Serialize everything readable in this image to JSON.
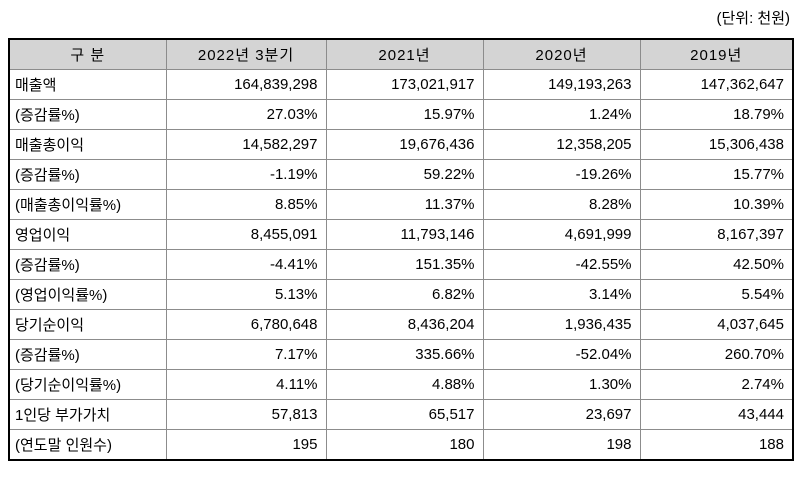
{
  "unit_label": "(단위: 천원)",
  "table": {
    "headers": [
      "구 분",
      "2022년 3분기",
      "2021년",
      "2020년",
      "2019년"
    ],
    "rows": [
      {
        "label": "매출액",
        "values": [
          "164,839,298",
          "173,021,917",
          "149,193,263",
          "147,362,647"
        ]
      },
      {
        "label": "(증감률%)",
        "values": [
          "27.03%",
          "15.97%",
          "1.24%",
          "18.79%"
        ]
      },
      {
        "label": "매출총이익",
        "values": [
          "14,582,297",
          "19,676,436",
          "12,358,205",
          "15,306,438"
        ]
      },
      {
        "label": "(증감률%)",
        "values": [
          "-1.19%",
          "59.22%",
          "-19.26%",
          "15.77%"
        ]
      },
      {
        "label": "(매출총이익률%)",
        "values": [
          "8.85%",
          "11.37%",
          "8.28%",
          "10.39%"
        ]
      },
      {
        "label": "영업이익",
        "values": [
          "8,455,091",
          "11,793,146",
          "4,691,999",
          "8,167,397"
        ]
      },
      {
        "label": "(증감률%)",
        "values": [
          "-4.41%",
          "151.35%",
          "-42.55%",
          "42.50%"
        ]
      },
      {
        "label": "(영업이익률%)",
        "values": [
          "5.13%",
          "6.82%",
          "3.14%",
          "5.54%"
        ]
      },
      {
        "label": "당기순이익",
        "values": [
          "6,780,648",
          "8,436,204",
          "1,936,435",
          "4,037,645"
        ]
      },
      {
        "label": "(증감률%)",
        "values": [
          "7.17%",
          "335.66%",
          "-52.04%",
          "260.70%"
        ]
      },
      {
        "label": "(당기순이익률%)",
        "values": [
          "4.11%",
          "4.88%",
          "1.30%",
          "2.74%"
        ]
      },
      {
        "label": "1인당 부가가치",
        "values": [
          "57,813",
          "65,517",
          "23,697",
          "43,444"
        ]
      },
      {
        "label": "(연도말 인원수)",
        "values": [
          "195",
          "180",
          "198",
          "188"
        ]
      }
    ]
  },
  "colors": {
    "header_bg": "#d4d4d4",
    "grid_line": "#8c8c8c",
    "outer_border": "#000000",
    "text": "#000000",
    "background": "#ffffff"
  }
}
